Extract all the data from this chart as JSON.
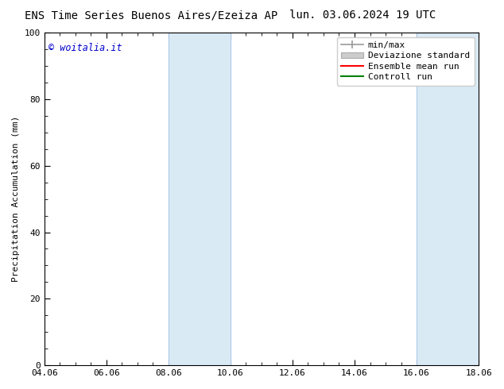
{
  "title_left": "ENS Time Series Buenos Aires/Ezeiza AP",
  "title_right": "lun. 03.06.2024 19 UTC",
  "ylabel": "Precipitation Accumulation (mm)",
  "xlim": [
    0,
    14
  ],
  "ylim": [
    0,
    100
  ],
  "yticks": [
    0,
    20,
    40,
    60,
    80,
    100
  ],
  "xtick_values": [
    0,
    2,
    4,
    6,
    8,
    10,
    12,
    14
  ],
  "xtick_labels": [
    "04.06",
    "06.06",
    "08.06",
    "10.06",
    "12.06",
    "14.06",
    "16.06",
    "18.06"
  ],
  "shaded_regions": [
    {
      "xstart": 4,
      "xend": 6
    },
    {
      "xstart": 12,
      "xend": 14
    }
  ],
  "shaded_color": "#daeaf5",
  "shaded_edge_color": "#aac8e8",
  "copyright_text": "© woitalia.it",
  "copyright_color": "#0000cc",
  "legend_entries": [
    "min/max",
    "Deviazione standard",
    "Ensemble mean run",
    "Controll run"
  ],
  "minmax_color": "#999999",
  "dev_std_color": "#cccccc",
  "dev_std_edge": "#aaaaaa",
  "ensemble_color": "#ff0000",
  "control_color": "#008000",
  "bg_color": "#ffffff",
  "title_fontsize": 10,
  "tick_fontsize": 8,
  "ylabel_fontsize": 8,
  "legend_fontsize": 8,
  "border_color": "#000000"
}
